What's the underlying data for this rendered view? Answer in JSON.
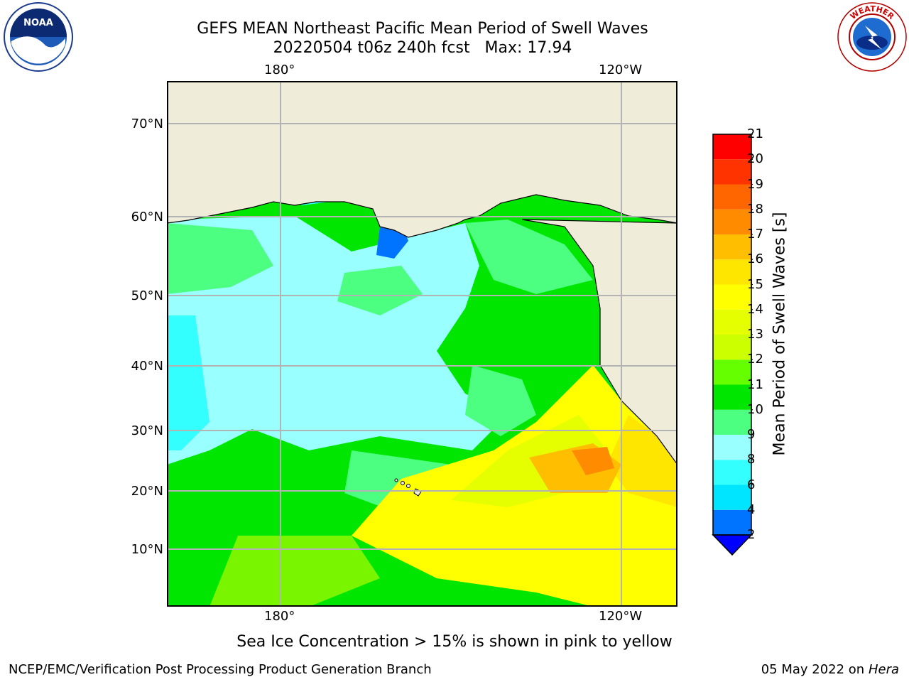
{
  "title_line1": "GEFS MEAN Northeast Pacific Mean Period of Swell Waves",
  "title_line2": "20220504 t06z 240h fcst   Max: 17.94",
  "logos": {
    "left": "noaa-logo",
    "right": "nws-logo"
  },
  "axes": {
    "lon_ticks": [
      "180°",
      "120°W"
    ],
    "lat_ticks": [
      "70°N",
      "60°N",
      "50°N",
      "40°N",
      "30°N",
      "20°N",
      "10°N"
    ]
  },
  "colorbar": {
    "label": "Mean Period of Swell Waves [s]",
    "ticks": [
      "2",
      "4",
      "6",
      "8",
      "9",
      "10",
      "11",
      "12",
      "13",
      "14",
      "15",
      "16",
      "17",
      "18",
      "19",
      "20",
      "21"
    ],
    "colors": [
      "#0073ff",
      "#00e5ff",
      "#33ffff",
      "#99ffff",
      "#4dff80",
      "#00e600",
      "#66ff00",
      "#ccff00",
      "#e5ff00",
      "#ffff00",
      "#ffe600",
      "#ffbf00",
      "#ff8c00",
      "#ff6600",
      "#ff3300",
      "#ff0000"
    ],
    "extend_color": "#0000ff"
  },
  "note": "Sea Ice Concentration > 15% is shown in pink to yellow",
  "credit": "NCEP/EMC/Verification Post Processing Product Generation Branch",
  "date": "05 May 2022 on",
  "machine": "Hera"
}
